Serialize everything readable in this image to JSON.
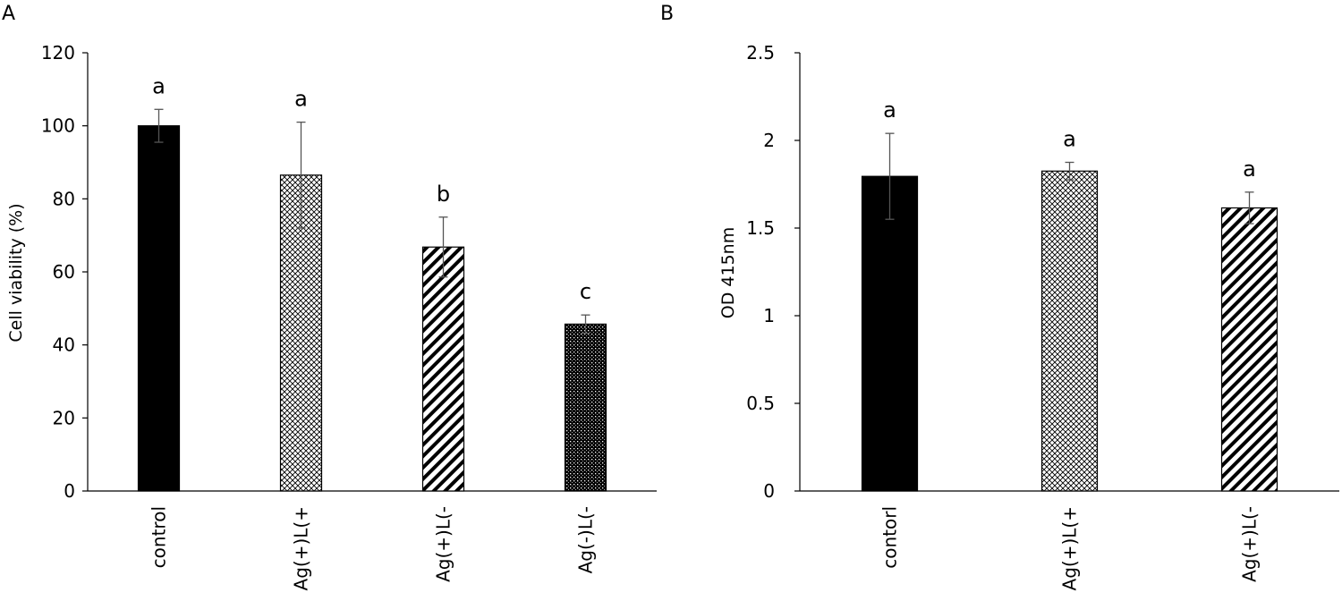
{
  "chart_data": [
    {
      "panel": "A",
      "type": "bar",
      "categories": [
        "control",
        "Ag(+)L(+",
        "Ag(+)L(-",
        "Ag(-)L(-"
      ],
      "values": [
        100,
        86.5,
        66.8,
        45.7
      ],
      "error": [
        4.5,
        14.5,
        8.2,
        2.5
      ],
      "significance": [
        "a",
        "a",
        "b",
        "c"
      ],
      "patterns": [
        "solid",
        "crosshatch",
        "diagonal",
        "dense-crosshatch"
      ],
      "ylabel": "Cell viability (%)",
      "xlabel": "",
      "ylim": [
        0,
        120
      ],
      "yticks": [
        "0",
        "20",
        "40",
        "60",
        "80",
        "100",
        "120"
      ],
      "grid": false
    },
    {
      "panel": "B",
      "type": "bar",
      "categories": [
        "contorl",
        "Ag(+)L(+",
        "Ag(+)L(-"
      ],
      "values": [
        1.795,
        1.825,
        1.615
      ],
      "error": [
        0.245,
        0.05,
        0.09
      ],
      "significance": [
        "a",
        "a",
        "a"
      ],
      "patterns": [
        "solid",
        "crosshatch",
        "diagonal"
      ],
      "ylabel": "OD  415nm",
      "xlabel": "",
      "ylim": [
        0,
        2.5
      ],
      "yticks": [
        "0",
        "0.5",
        "1",
        "1.5",
        "2",
        "2.5"
      ],
      "grid": false
    }
  ]
}
